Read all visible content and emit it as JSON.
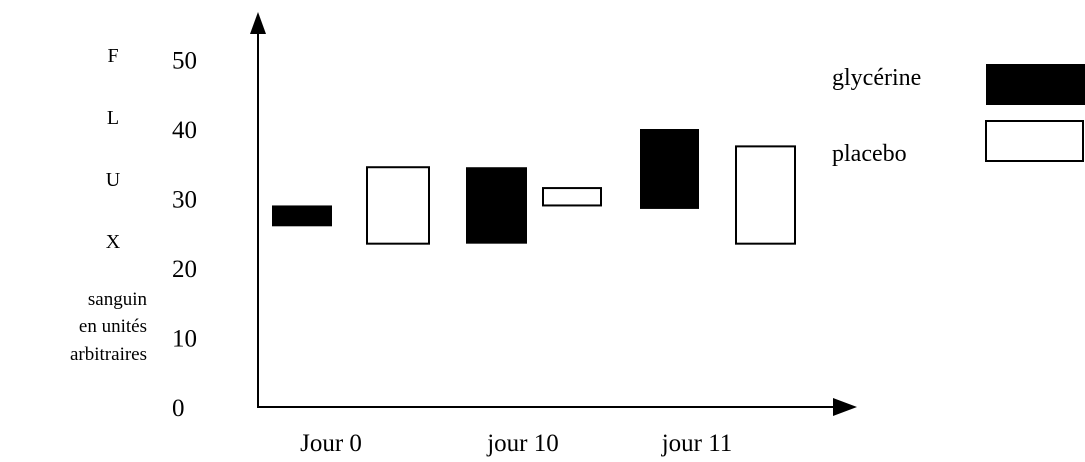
{
  "chart_data": {
    "type": "bar",
    "bar_style": "floating-range",
    "categories": [
      "Jour 0",
      "jour 10",
      "jour 11"
    ],
    "series": [
      {
        "name": "glycérine",
        "color": "#000000",
        "ranges": [
          [
            26,
            29
          ],
          [
            23.5,
            34.5
          ],
          [
            28.5,
            40
          ]
        ]
      },
      {
        "name": "placebo",
        "color": "#ffffff",
        "ranges": [
          [
            23.5,
            34.5
          ],
          [
            29,
            31.5
          ],
          [
            23.5,
            37.5
          ]
        ]
      }
    ],
    "ylabel_letters": [
      "F",
      "L",
      "U",
      "X"
    ],
    "ylabel_lines": [
      "sanguin",
      "en unités",
      "arbitraires"
    ],
    "yticks": [
      0,
      10,
      20,
      30,
      40,
      50
    ],
    "ylim": [
      0,
      55
    ],
    "legend_position": "top-right",
    "grid": false
  }
}
